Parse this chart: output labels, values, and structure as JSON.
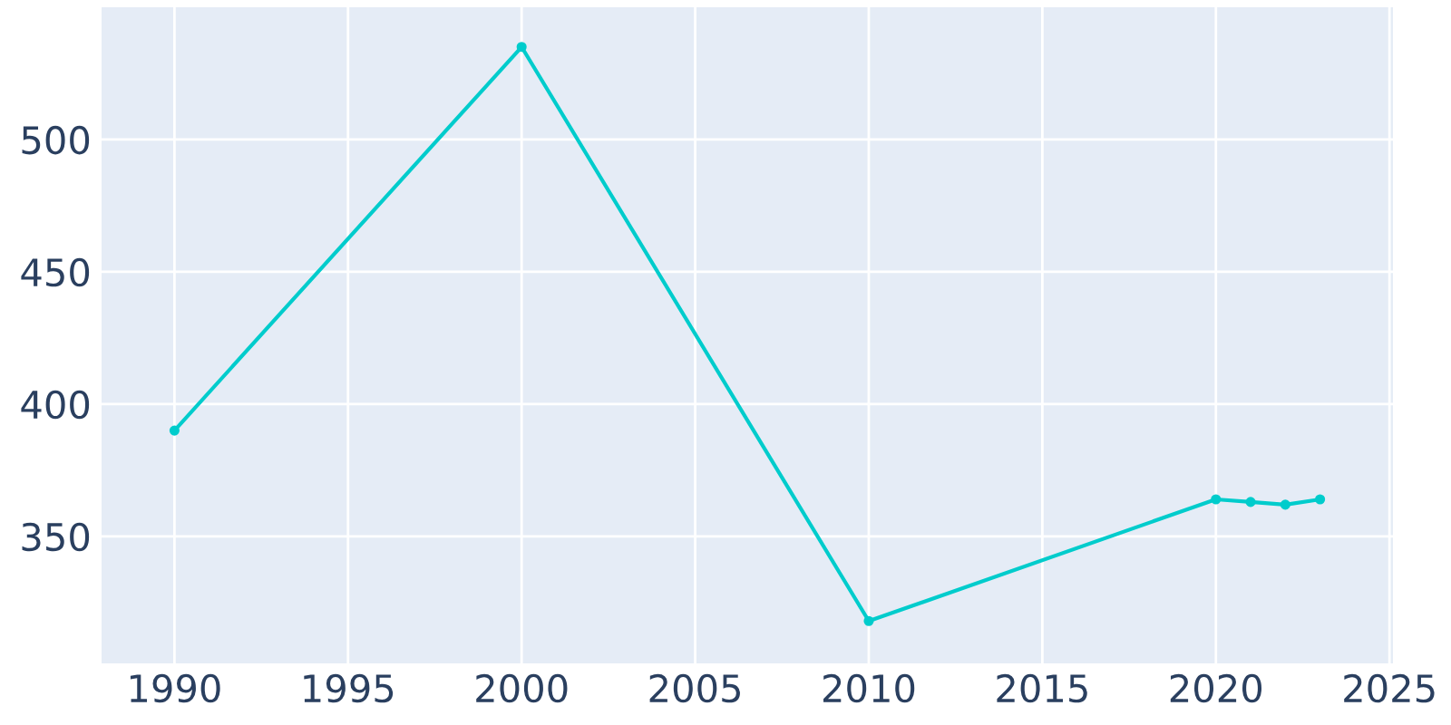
{
  "chart_data": {
    "type": "line",
    "x": [
      1990,
      2000,
      2010,
      2020,
      2021,
      2022,
      2023
    ],
    "series": [
      {
        "color": "#00cccc",
        "values": [
          390,
          535,
          318,
          364,
          363,
          362,
          364
        ]
      }
    ],
    "xlim": [
      1987.9,
      2025.1
    ],
    "xticks": [
      1990,
      1995,
      2000,
      2005,
      2010,
      2015,
      2020,
      2025
    ],
    "ylim": [
      302,
      550
    ],
    "yticks": [
      350,
      400,
      450,
      500
    ],
    "grid": true,
    "marker": "circle",
    "line_style": "solid",
    "legend": false
  }
}
